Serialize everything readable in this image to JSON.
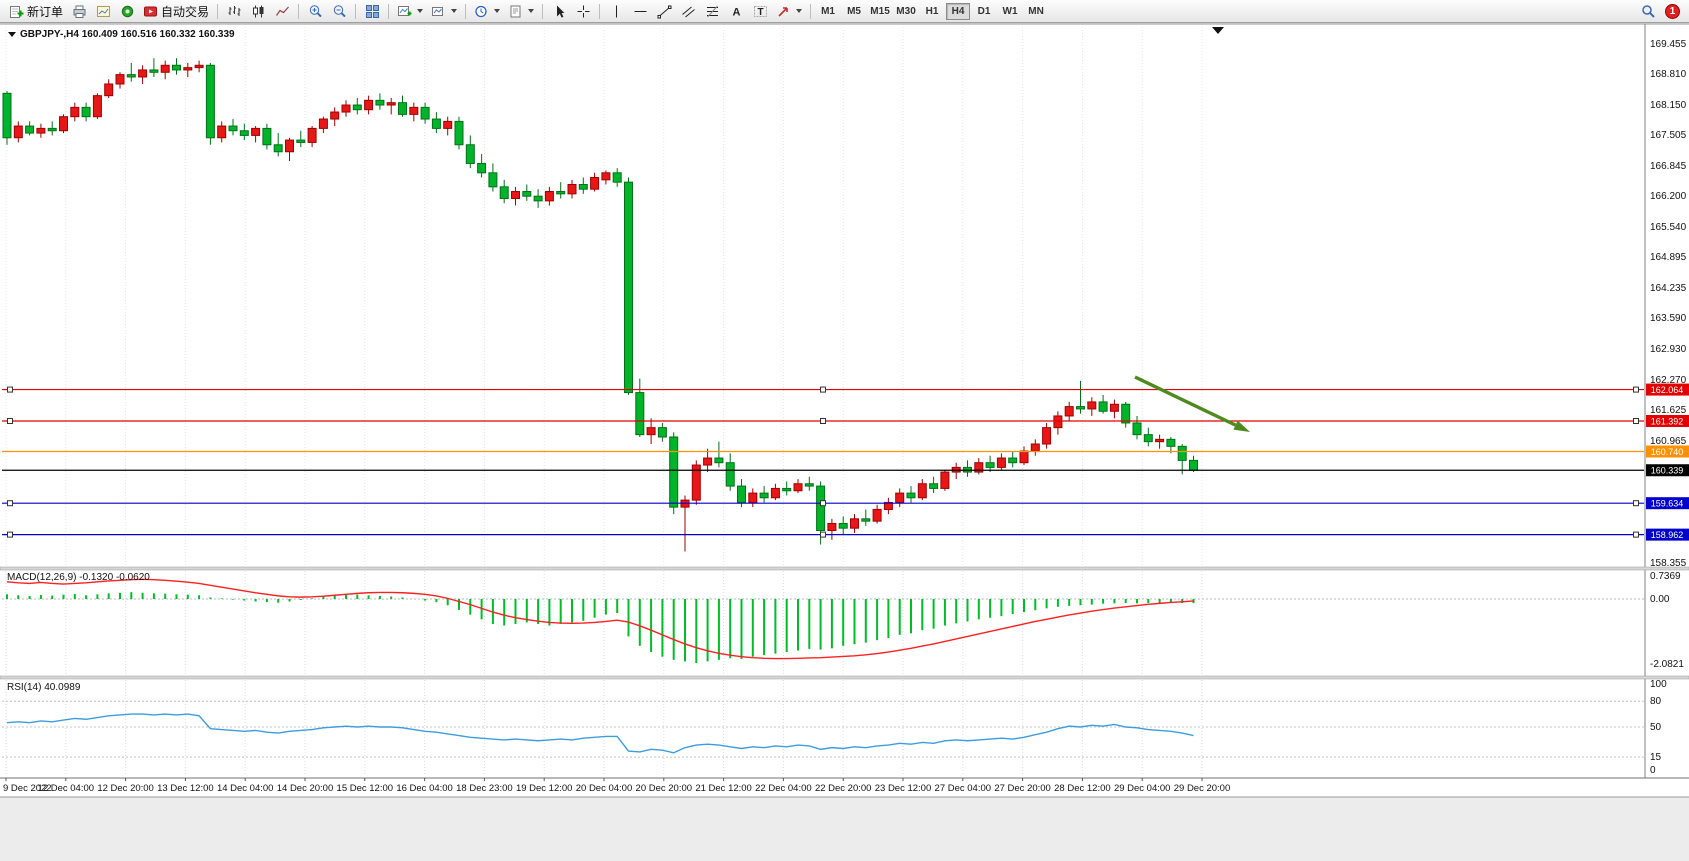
{
  "toolbar": {
    "new_order_label": "新订单",
    "autotrading_label": "自动交易",
    "icon_glyphs": {
      "text_tool": "A",
      "label_tool": "T"
    },
    "icons": [
      "new-order-icon",
      "print-icon",
      "chart-preview-icon",
      "data-window-icon",
      "autotrading-icon",
      "bar-chart-icon",
      "candlestick-icon",
      "line-chart-icon",
      "zoom-in-icon",
      "zoom-out-icon",
      "tile-windows-icon",
      "new-chart-icon",
      "profiles-icon",
      "periods-icon",
      "templates-icon",
      "cursor-icon",
      "crosshair-icon",
      "vertical-line-icon",
      "horizontal-line-icon",
      "trendline-icon",
      "channel-icon",
      "fibonacci-icon",
      "text-icon",
      "text-label-icon",
      "arrows-icon",
      "search-icon"
    ],
    "timeframes": [
      "M1",
      "M5",
      "M15",
      "M30",
      "H1",
      "H4",
      "D1",
      "W1",
      "MN"
    ],
    "active_timeframe": "H4",
    "notification_badge": "1"
  },
  "chart": {
    "symbol_label": "GBPJPY-,H4  160.409 160.516 160.332 160.339",
    "ohlc_display": {
      "open": "160.409",
      "high": "160.516",
      "low": "160.332",
      "close": "160.339"
    },
    "price_axis_labels": [
      "169.455",
      "168.810",
      "168.150",
      "167.505",
      "166.845",
      "166.200",
      "165.540",
      "164.895",
      "164.235",
      "163.590",
      "162.930",
      "162.270",
      "161.625",
      "160.965",
      "158.355"
    ],
    "price_lines": [
      {
        "price": 162.064,
        "label": "162.064",
        "color": "#e00000",
        "handles": true
      },
      {
        "price": 161.392,
        "label": "161.392",
        "color": "#e00000",
        "handles": true
      },
      {
        "price": 160.74,
        "label": "160.740",
        "color": "#ff9000",
        "handles": false
      },
      {
        "price": 160.339,
        "label": "160.339",
        "color": "#000000",
        "handles": false,
        "is_current_price": true
      },
      {
        "price": 159.634,
        "label": "159.634",
        "color": "#0000cc",
        "handles": true
      },
      {
        "price": 158.962,
        "label": "158.962",
        "color": "#0000cc",
        "handles": true
      }
    ],
    "time_axis_labels": [
      "9 Dec 2022",
      "12 Dec 04:00",
      "12 Dec 20:00",
      "13 Dec 12:00",
      "14 Dec 04:00",
      "14 Dec 20:00",
      "15 Dec 12:00",
      "16 Dec 04:00",
      "18 Dec 23:00",
      "19 Dec 12:00",
      "20 Dec 04:00",
      "20 Dec 20:00",
      "21 Dec 12:00",
      "22 Dec 04:00",
      "22 Dec 20:00",
      "23 Dec 12:00",
      "27 Dec 04:00",
      "27 Dec 20:00",
      "28 Dec 12:00",
      "29 Dec 04:00",
      "29 Dec 20:00"
    ],
    "annotation_arrow": {
      "color": "#4d8b1f",
      "direction": "down-right",
      "from_price": 162.2,
      "to_price": 161.0
    }
  },
  "indicators": {
    "macd": {
      "label": "MACD(12,26,9) -0.1320 -0.0620",
      "axis_labels": [
        {
          "value": 0.7369,
          "label": "0.7369"
        },
        {
          "value": 0,
          "label": "0.00"
        },
        {
          "value": -2.0821,
          "label": "-2.0821"
        }
      ]
    },
    "rsi": {
      "label": "RSI(14) 40.0989",
      "levels": [
        80,
        50,
        15
      ],
      "axis_labels": [
        {
          "value": 100,
          "label": "100"
        },
        {
          "value": 80,
          "label": "80"
        },
        {
          "value": 50,
          "label": "50"
        },
        {
          "value": 15,
          "label": "15"
        },
        {
          "value": 0,
          "label": "0"
        }
      ]
    }
  },
  "chart_data": [
    {
      "type": "candlestick",
      "symbol": "GBPJPY-",
      "timeframe": "H4",
      "ylim": [
        158.355,
        169.455
      ],
      "up_color": "#e81717",
      "down_color": "#00b42a",
      "ohlc": [
        [
          168.4,
          168.45,
          167.3,
          167.45
        ],
        [
          167.45,
          167.8,
          167.35,
          167.7
        ],
        [
          167.7,
          167.8,
          167.5,
          167.55
        ],
        [
          167.55,
          167.75,
          167.45,
          167.65
        ],
        [
          167.65,
          167.8,
          167.5,
          167.6
        ],
        [
          167.6,
          167.95,
          167.55,
          167.9
        ],
        [
          167.9,
          168.2,
          167.8,
          168.1
        ],
        [
          168.1,
          168.2,
          167.8,
          167.9
        ],
        [
          167.9,
          168.4,
          167.85,
          168.35
        ],
        [
          168.35,
          168.7,
          168.3,
          168.6
        ],
        [
          168.6,
          168.85,
          168.5,
          168.8
        ],
        [
          168.8,
          169.05,
          168.65,
          168.75
        ],
        [
          168.75,
          169.0,
          168.6,
          168.9
        ],
        [
          168.9,
          169.15,
          168.75,
          168.85
        ],
        [
          168.85,
          169.1,
          168.7,
          169.0
        ],
        [
          169.0,
          169.15,
          168.8,
          168.9
        ],
        [
          168.9,
          169.05,
          168.75,
          168.95
        ],
        [
          168.95,
          169.1,
          168.85,
          169.0
        ],
        [
          169.0,
          169.05,
          167.3,
          167.45
        ],
        [
          167.45,
          167.8,
          167.35,
          167.7
        ],
        [
          167.7,
          167.85,
          167.5,
          167.6
        ],
        [
          167.6,
          167.75,
          167.4,
          167.5
        ],
        [
          167.5,
          167.7,
          167.35,
          167.65
        ],
        [
          167.65,
          167.75,
          167.2,
          167.3
        ],
        [
          167.3,
          167.55,
          167.05,
          167.15
        ],
        [
          167.15,
          167.45,
          166.95,
          167.4
        ],
        [
          167.4,
          167.6,
          167.25,
          167.35
        ],
        [
          167.35,
          167.7,
          167.25,
          167.65
        ],
        [
          167.65,
          167.9,
          167.55,
          167.85
        ],
        [
          167.85,
          168.1,
          167.7,
          168.0
        ],
        [
          168.0,
          168.25,
          167.9,
          168.15
        ],
        [
          168.15,
          168.3,
          167.95,
          168.05
        ],
        [
          168.05,
          168.35,
          167.95,
          168.25
        ],
        [
          168.25,
          168.4,
          168.05,
          168.15
        ],
        [
          168.15,
          168.3,
          167.95,
          168.2
        ],
        [
          168.2,
          168.35,
          167.9,
          167.95
        ],
        [
          167.95,
          168.2,
          167.8,
          168.1
        ],
        [
          168.1,
          168.2,
          167.75,
          167.85
        ],
        [
          167.85,
          168.0,
          167.55,
          167.65
        ],
        [
          167.65,
          167.9,
          167.5,
          167.8
        ],
        [
          167.8,
          167.9,
          167.2,
          167.3
        ],
        [
          167.3,
          167.5,
          166.8,
          166.9
        ],
        [
          166.9,
          167.1,
          166.6,
          166.7
        ],
        [
          166.7,
          166.9,
          166.3,
          166.4
        ],
        [
          166.4,
          166.55,
          166.05,
          166.15
        ],
        [
          166.15,
          166.4,
          166.0,
          166.3
        ],
        [
          166.3,
          166.45,
          166.1,
          166.2
        ],
        [
          166.2,
          166.35,
          165.95,
          166.1
        ],
        [
          166.1,
          166.4,
          166.0,
          166.3
        ],
        [
          166.3,
          166.5,
          166.15,
          166.25
        ],
        [
          166.25,
          166.55,
          166.15,
          166.45
        ],
        [
          166.45,
          166.6,
          166.25,
          166.35
        ],
        [
          166.35,
          166.7,
          166.3,
          166.6
        ],
        [
          166.55,
          166.75,
          166.45,
          166.7
        ],
        [
          166.7,
          166.8,
          166.4,
          166.5
        ],
        [
          166.5,
          166.6,
          161.95,
          162.0
        ],
        [
          162.0,
          162.3,
          161.05,
          161.1
        ],
        [
          161.1,
          161.45,
          160.9,
          161.25
        ],
        [
          161.25,
          161.35,
          160.95,
          161.05
        ],
        [
          161.05,
          161.15,
          159.4,
          159.55
        ],
        [
          159.55,
          159.8,
          158.6,
          159.7
        ],
        [
          159.7,
          160.55,
          159.6,
          160.45
        ],
        [
          160.45,
          160.8,
          160.3,
          160.6
        ],
        [
          160.6,
          160.95,
          160.4,
          160.5
        ],
        [
          160.5,
          160.7,
          159.9,
          160.0
        ],
        [
          160.0,
          160.15,
          159.55,
          159.65
        ],
        [
          159.65,
          159.95,
          159.55,
          159.85
        ],
        [
          159.85,
          160.0,
          159.65,
          159.75
        ],
        [
          159.75,
          160.05,
          159.7,
          159.95
        ],
        [
          159.95,
          160.1,
          159.8,
          159.9
        ],
        [
          159.9,
          160.15,
          159.85,
          160.05
        ],
        [
          160.05,
          160.2,
          159.9,
          160.0
        ],
        [
          160.0,
          160.1,
          158.75,
          159.05
        ],
        [
          159.05,
          159.3,
          158.85,
          159.2
        ],
        [
          159.2,
          159.35,
          158.95,
          159.1
        ],
        [
          159.1,
          159.4,
          159.0,
          159.3
        ],
        [
          159.3,
          159.5,
          159.15,
          159.25
        ],
        [
          159.25,
          159.6,
          159.2,
          159.5
        ],
        [
          159.5,
          159.75,
          159.4,
          159.65
        ],
        [
          159.65,
          159.95,
          159.55,
          159.85
        ],
        [
          159.85,
          160.0,
          159.65,
          159.75
        ],
        [
          159.75,
          160.15,
          159.7,
          160.05
        ],
        [
          160.05,
          160.2,
          159.85,
          159.95
        ],
        [
          159.95,
          160.35,
          159.9,
          160.3
        ],
        [
          160.3,
          160.5,
          160.15,
          160.4
        ],
        [
          160.4,
          160.55,
          160.2,
          160.3
        ],
        [
          160.3,
          160.6,
          160.25,
          160.5
        ],
        [
          160.5,
          160.65,
          160.3,
          160.4
        ],
        [
          160.4,
          160.7,
          160.35,
          160.6
        ],
        [
          160.6,
          160.75,
          160.4,
          160.5
        ],
        [
          160.5,
          160.85,
          160.45,
          160.75
        ],
        [
          160.75,
          161.0,
          160.65,
          160.9
        ],
        [
          160.9,
          161.35,
          160.8,
          161.25
        ],
        [
          161.25,
          161.6,
          161.1,
          161.5
        ],
        [
          161.5,
          161.8,
          161.4,
          161.7
        ],
        [
          161.7,
          162.25,
          161.55,
          161.65
        ],
        [
          161.65,
          161.9,
          161.5,
          161.8
        ],
        [
          161.8,
          161.95,
          161.55,
          161.6
        ],
        [
          161.6,
          161.85,
          161.45,
          161.75
        ],
        [
          161.75,
          161.8,
          161.25,
          161.35
        ],
        [
          161.35,
          161.5,
          161.0,
          161.1
        ],
        [
          161.1,
          161.25,
          160.85,
          160.95
        ],
        [
          160.95,
          161.1,
          160.8,
          161.0
        ],
        [
          161.0,
          161.05,
          160.7,
          160.85
        ],
        [
          160.85,
          160.9,
          160.25,
          160.55
        ],
        [
          160.55,
          160.65,
          160.3,
          160.34
        ]
      ]
    },
    {
      "type": "bar",
      "name": "MACD(12,26,9)",
      "ylim": [
        -2.0821,
        0.7369
      ],
      "histogram_color": "#00bc28",
      "signal_color": "#ff2020",
      "values": [
        0.15,
        0.12,
        0.1,
        0.13,
        0.11,
        0.14,
        0.16,
        0.12,
        0.15,
        0.18,
        0.2,
        0.22,
        0.2,
        0.18,
        0.17,
        0.15,
        0.14,
        0.12,
        0.05,
        0.02,
        -0.02,
        -0.05,
        -0.08,
        -0.1,
        -0.12,
        -0.08,
        -0.03,
        0.02,
        0.08,
        0.12,
        0.15,
        0.14,
        0.12,
        0.1,
        0.08,
        0.05,
        0.0,
        -0.05,
        -0.1,
        -0.2,
        -0.35,
        -0.5,
        -0.65,
        -0.8,
        -0.85,
        -0.8,
        -0.75,
        -0.8,
        -0.85,
        -0.8,
        -0.75,
        -0.7,
        -0.6,
        -0.5,
        -0.45,
        -1.2,
        -1.5,
        -1.7,
        -1.85,
        -1.95,
        -2.0,
        -2.05,
        -2.0,
        -1.95,
        -1.9,
        -1.92,
        -1.85,
        -1.8,
        -1.75,
        -1.7,
        -1.65,
        -1.6,
        -1.62,
        -1.58,
        -1.5,
        -1.45,
        -1.4,
        -1.32,
        -1.25,
        -1.15,
        -1.1,
        -1.0,
        -0.95,
        -0.85,
        -0.78,
        -0.72,
        -0.65,
        -0.6,
        -0.55,
        -0.48,
        -0.42,
        -0.36,
        -0.3,
        -0.25,
        -0.22,
        -0.2,
        -0.18,
        -0.15,
        -0.14,
        -0.13,
        -0.14,
        -0.13,
        -0.13,
        -0.12,
        -0.13,
        -0.132
      ],
      "signal": [
        0.55,
        0.52,
        0.5,
        0.53,
        0.5,
        0.48,
        0.5,
        0.52,
        0.55,
        0.58,
        0.6,
        0.62,
        0.63,
        0.62,
        0.6,
        0.57,
        0.54,
        0.5,
        0.44,
        0.38,
        0.32,
        0.26,
        0.2,
        0.15,
        0.1,
        0.07,
        0.06,
        0.07,
        0.09,
        0.12,
        0.15,
        0.18,
        0.2,
        0.21,
        0.21,
        0.2,
        0.18,
        0.15,
        0.1,
        0.02,
        -0.08,
        -0.18,
        -0.3,
        -0.42,
        -0.52,
        -0.6,
        -0.66,
        -0.71,
        -0.75,
        -0.77,
        -0.78,
        -0.77,
        -0.75,
        -0.72,
        -0.68,
        -0.74,
        -0.86,
        -1.0,
        -1.15,
        -1.3,
        -1.44,
        -1.56,
        -1.66,
        -1.74,
        -1.8,
        -1.85,
        -1.88,
        -1.9,
        -1.91,
        -1.91,
        -1.9,
        -1.89,
        -1.88,
        -1.86,
        -1.84,
        -1.82,
        -1.79,
        -1.75,
        -1.7,
        -1.64,
        -1.58,
        -1.51,
        -1.44,
        -1.36,
        -1.28,
        -1.2,
        -1.12,
        -1.04,
        -0.96,
        -0.88,
        -0.8,
        -0.72,
        -0.65,
        -0.58,
        -0.51,
        -0.45,
        -0.39,
        -0.34,
        -0.29,
        -0.25,
        -0.21,
        -0.17,
        -0.14,
        -0.11,
        -0.09,
        -0.062
      ],
      "last_values_display": [
        "-0.1320",
        "-0.0620"
      ]
    },
    {
      "type": "line",
      "name": "RSI(14)",
      "ylim": [
        0,
        100
      ],
      "line_color": "#3d9ce0",
      "last_value": 40.0989,
      "values": [
        55,
        56,
        55,
        57,
        56,
        58,
        60,
        59,
        61,
        63,
        64,
        65,
        65,
        64,
        65,
        64,
        65,
        63,
        48,
        47,
        46,
        45,
        46,
        44,
        43,
        45,
        46,
        47,
        49,
        50,
        51,
        50,
        51,
        50,
        50,
        49,
        47,
        45,
        44,
        42,
        40,
        38,
        37,
        36,
        35,
        36,
        35,
        34,
        35,
        36,
        35,
        37,
        38,
        39,
        39,
        22,
        21,
        24,
        23,
        20,
        26,
        29,
        30,
        29,
        27,
        25,
        27,
        26,
        28,
        27,
        29,
        28,
        24,
        26,
        25,
        27,
        26,
        28,
        29,
        31,
        30,
        32,
        31,
        34,
        35,
        34,
        35,
        36,
        37,
        36,
        38,
        41,
        44,
        48,
        51,
        50,
        52,
        51,
        53,
        50,
        49,
        47,
        46,
        45,
        43,
        40.1
      ]
    }
  ]
}
